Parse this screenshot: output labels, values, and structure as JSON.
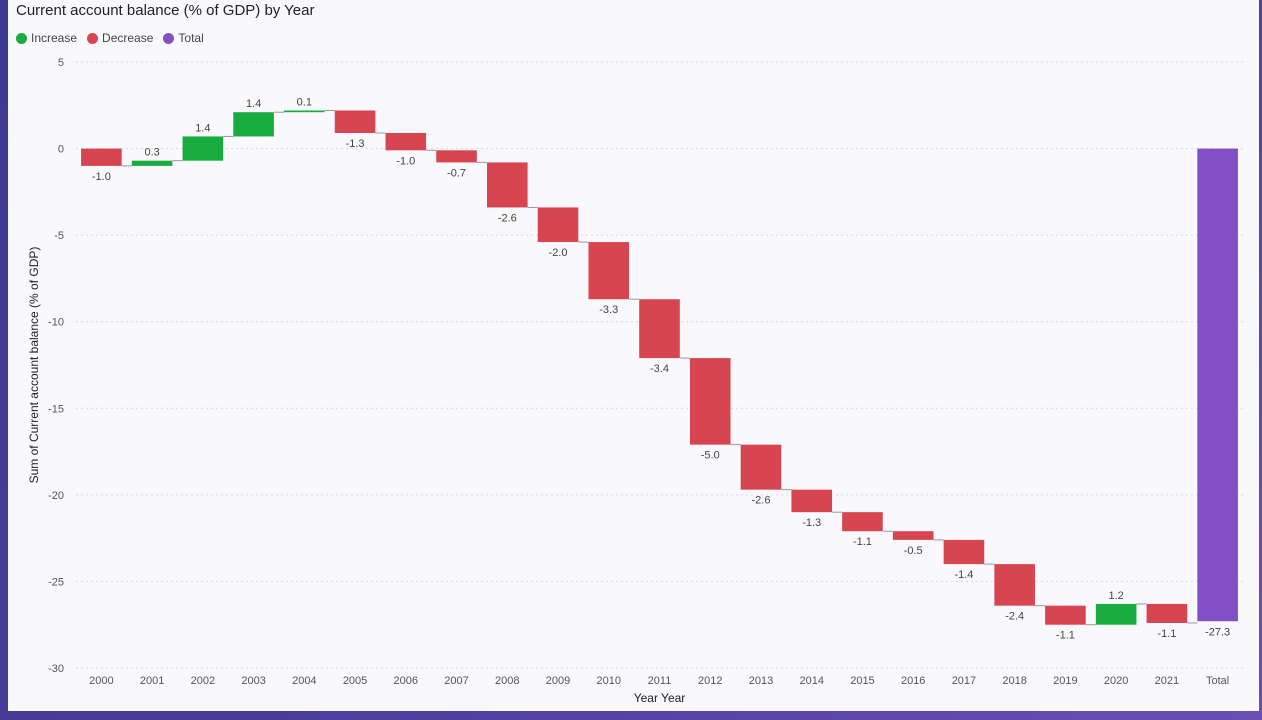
{
  "title": "Current account balance (% of GDP) by Year",
  "legend": {
    "increase": "Increase",
    "decrease": "Decrease",
    "total": "Total"
  },
  "colors": {
    "increase": "#1aab40",
    "decrease": "#d64550",
    "total": "#8250c4"
  },
  "chart_data": {
    "type": "waterfall",
    "title": "Current account balance (% of GDP) by Year",
    "xlabel": "Year Year",
    "ylabel": "Sum of Current account balance (% of GDP)",
    "ylim": [
      -30,
      5
    ],
    "yticks": [
      5,
      0,
      -5,
      -10,
      -15,
      -20,
      -25,
      -30
    ],
    "categories": [
      "2000",
      "2001",
      "2002",
      "2003",
      "2004",
      "2005",
      "2006",
      "2007",
      "2008",
      "2009",
      "2010",
      "2011",
      "2012",
      "2013",
      "2014",
      "2015",
      "2016",
      "2017",
      "2018",
      "2019",
      "2020",
      "2021",
      "Total"
    ],
    "values": [
      -1.0,
      0.3,
      1.4,
      1.4,
      0.1,
      -1.3,
      -1.0,
      -0.7,
      -2.6,
      -2.0,
      -3.3,
      -3.4,
      -5.0,
      -2.6,
      -1.3,
      -1.1,
      -0.5,
      -1.4,
      -2.4,
      -1.1,
      1.2,
      -1.1,
      -27.3
    ],
    "labels": [
      "-1.0",
      "0.3",
      "1.4",
      "1.4",
      "0.1",
      "-1.3",
      "-1.0",
      "-0.7",
      "-2.6",
      "-2.0",
      "-3.3",
      "-3.4",
      "-5.0",
      "-2.6",
      "-1.3",
      "-1.1",
      "-0.5",
      "-1.4",
      "-2.4",
      "-1.1",
      "1.2",
      "-1.1",
      "-27.3"
    ],
    "total_index": 22,
    "grid": true
  }
}
